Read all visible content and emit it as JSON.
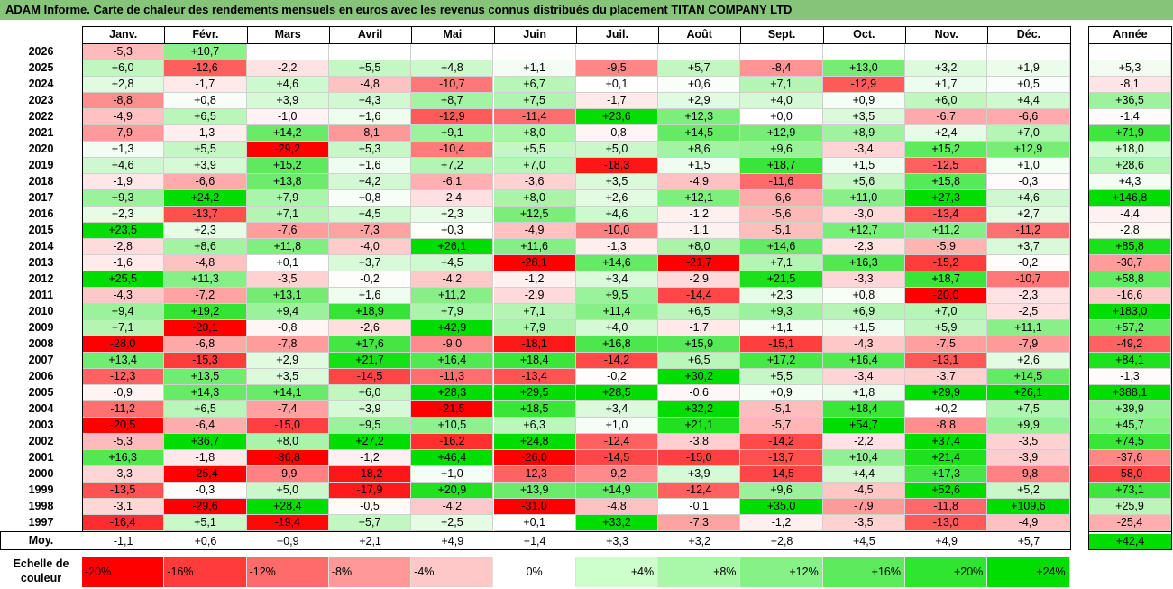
{
  "title": "ADAM Informe. Carte de chaleur des rendements mensuels en euros avec les revenus connus distribués du placement TITAN COMPANY LTD",
  "chart_data": {
    "type": "heatmap",
    "columns": [
      "Janv.",
      "Févr.",
      "Mars",
      "Avril",
      "Mai",
      "Juin",
      "Juil.",
      "Août",
      "Sept.",
      "Oct.",
      "Nov.",
      "Déc."
    ],
    "year_header": "Année",
    "rows": [
      {
        "year": "2026",
        "months": [
          -5.3,
          10.7,
          null,
          null,
          null,
          null,
          null,
          null,
          null,
          null,
          null,
          null
        ],
        "annual": null
      },
      {
        "year": "2025",
        "months": [
          6.0,
          -12.6,
          -2.2,
          5.5,
          4.8,
          1.1,
          -9.5,
          5.7,
          -8.4,
          13.0,
          3.2,
          1.9
        ],
        "annual": 5.3
      },
      {
        "year": "2024",
        "months": [
          2.8,
          -1.7,
          4.6,
          -4.8,
          -10.7,
          6.7,
          0.1,
          0.6,
          7.1,
          -12.9,
          1.7,
          0.5
        ],
        "annual": -8.1
      },
      {
        "year": "2023",
        "months": [
          -8.8,
          0.8,
          3.9,
          4.3,
          8.7,
          7.5,
          -1.7,
          2.9,
          4.0,
          0.9,
          6.0,
          4.4
        ],
        "annual": 36.5
      },
      {
        "year": "2022",
        "months": [
          -4.9,
          6.5,
          -1.0,
          1.6,
          -12.9,
          -11.4,
          23.6,
          12.3,
          0.0,
          3.5,
          -6.7,
          -6.6
        ],
        "annual": -1.4
      },
      {
        "year": "2021",
        "months": [
          -7.9,
          -1.3,
          14.2,
          -8.1,
          9.1,
          8.0,
          -0.8,
          14.5,
          12.9,
          8.9,
          2.4,
          7.0
        ],
        "annual": 71.9
      },
      {
        "year": "2020",
        "months": [
          1.3,
          5.5,
          -29.2,
          5.3,
          -10.4,
          5.5,
          5.0,
          8.6,
          9.6,
          -3.4,
          15.2,
          12.9
        ],
        "annual": 18.0
      },
      {
        "year": "2019",
        "months": [
          4.6,
          3.9,
          15.2,
          1.6,
          7.2,
          7.0,
          -18.3,
          1.5,
          18.7,
          1.5,
          -12.5,
          1.0
        ],
        "annual": 28.6
      },
      {
        "year": "2018",
        "months": [
          -1.9,
          -6.6,
          13.8,
          4.2,
          -6.1,
          -3.6,
          3.5,
          -4.9,
          -11.6,
          5.6,
          15.8,
          -0.3
        ],
        "annual": 4.3
      },
      {
        "year": "2017",
        "months": [
          9.3,
          24.2,
          7.9,
          0.8,
          -2.4,
          8.0,
          2.6,
          12.1,
          -6.6,
          11.0,
          27.3,
          4.6
        ],
        "annual": 146.8
      },
      {
        "year": "2016",
        "months": [
          2.3,
          -13.7,
          7.1,
          4.5,
          2.3,
          12.5,
          4.6,
          -1.2,
          -5.6,
          -3.0,
          -13.4,
          2.7
        ],
        "annual": -4.4
      },
      {
        "year": "2015",
        "months": [
          23.5,
          2.3,
          -7.6,
          -7.3,
          0.3,
          -4.9,
          -10.0,
          -1.1,
          -5.1,
          12.7,
          11.2,
          -11.2
        ],
        "annual": -2.8
      },
      {
        "year": "2014",
        "months": [
          -2.8,
          8.6,
          11.8,
          -4.0,
          26.1,
          11.6,
          -1.3,
          8.0,
          14.6,
          -2.3,
          -5.9,
          3.7
        ],
        "annual": 85.8
      },
      {
        "year": "2013",
        "months": [
          -1.6,
          -4.8,
          0.1,
          3.7,
          4.5,
          -28.1,
          14.6,
          -21.7,
          7.1,
          16.3,
          -15.2,
          -0.2
        ],
        "annual": -30.7
      },
      {
        "year": "2012",
        "months": [
          25.5,
          11.3,
          -3.5,
          -0.2,
          -4.2,
          -1.2,
          3.4,
          -2.9,
          21.5,
          -3.3,
          18.7,
          -10.7
        ],
        "annual": 58.8
      },
      {
        "year": "2011",
        "months": [
          -4.3,
          -7.2,
          13.1,
          1.6,
          11.2,
          -2.9,
          9.5,
          -14.4,
          2.3,
          0.8,
          -20.0,
          -2.3
        ],
        "annual": -16.6
      },
      {
        "year": "2010",
        "months": [
          9.4,
          19.2,
          9.4,
          18.9,
          7.9,
          7.1,
          11.4,
          6.5,
          9.3,
          6.9,
          7.0,
          -2.5
        ],
        "annual": 183.0
      },
      {
        "year": "2009",
        "months": [
          7.1,
          -20.1,
          -0.8,
          -2.6,
          42.9,
          7.9,
          4.0,
          -1.7,
          1.1,
          1.5,
          5.9,
          11.1
        ],
        "annual": 57.2
      },
      {
        "year": "2008",
        "months": [
          -28.0,
          -6.8,
          -7.8,
          17.6,
          -9.0,
          -18.1,
          16.8,
          15.9,
          -15.1,
          -4.3,
          -7.5,
          -7.9
        ],
        "annual": -49.2
      },
      {
        "year": "2007",
        "months": [
          13.4,
          -15.3,
          2.9,
          21.7,
          16.4,
          18.4,
          -14.2,
          6.5,
          17.2,
          16.4,
          -13.1,
          2.6
        ],
        "annual": 84.1
      },
      {
        "year": "2006",
        "months": [
          -12.3,
          13.5,
          3.5,
          -14.5,
          -11.3,
          -13.4,
          -0.2,
          30.2,
          5.5,
          -3.4,
          -3.7,
          14.5
        ],
        "annual": -1.3
      },
      {
        "year": "2005",
        "months": [
          -0.9,
          14.3,
          14.1,
          6.0,
          28.3,
          29.5,
          28.5,
          -0.6,
          0.9,
          1.8,
          29.9,
          26.1
        ],
        "annual": 388.1
      },
      {
        "year": "2004",
        "months": [
          -11.2,
          6.5,
          -7.4,
          3.9,
          -21.5,
          18.5,
          3.4,
          32.2,
          -5.1,
          18.4,
          0.2,
          7.5
        ],
        "annual": 39.9
      },
      {
        "year": "2003",
        "months": [
          -20.5,
          -6.4,
          -15.0,
          9.5,
          10.5,
          6.3,
          1.0,
          21.1,
          -5.7,
          54.7,
          -8.8,
          9.9
        ],
        "annual": 45.7
      },
      {
        "year": "2002",
        "months": [
          -5.3,
          36.7,
          8.0,
          27.2,
          -16.2,
          24.8,
          -12.4,
          -3.8,
          -14.2,
          -2.2,
          37.4,
          -3.5
        ],
        "annual": 74.5
      },
      {
        "year": "2001",
        "months": [
          16.3,
          -1.8,
          -36.8,
          -1.2,
          46.4,
          -26.0,
          -14.5,
          -15.0,
          -13.7,
          10.4,
          21.4,
          -3.9
        ],
        "annual": -37.6
      },
      {
        "year": "2000",
        "months": [
          -3.3,
          -25.4,
          -9.9,
          -18.2,
          1.0,
          -12.3,
          -9.2,
          3.9,
          -14.5,
          4.4,
          17.3,
          -9.8
        ],
        "annual": -58.0
      },
      {
        "year": "1999",
        "months": [
          -13.5,
          -0.3,
          5.0,
          -17.9,
          20.9,
          13.9,
          14.9,
          -12.4,
          9.6,
          -4.5,
          52.6,
          5.2
        ],
        "annual": 73.1
      },
      {
        "year": "1998",
        "months": [
          -3.1,
          -29.6,
          28.4,
          -0.5,
          -4.2,
          -31.0,
          -4.8,
          -0.1,
          35.0,
          -7.9,
          -11.8,
          109.6
        ],
        "annual": 25.9
      },
      {
        "year": "1997",
        "months": [
          -16.4,
          5.1,
          -19.4,
          5.7,
          2.5,
          0.1,
          33.2,
          -7.3,
          -1.2,
          -3.5,
          -13.0,
          -4.9
        ],
        "annual": -25.4
      }
    ],
    "average": {
      "label": "Moy.",
      "months": [
        -1.1,
        0.6,
        0.9,
        2.1,
        4.9,
        1.4,
        3.3,
        3.2,
        2.8,
        4.5,
        4.9,
        5.7
      ],
      "annual": 42.4
    },
    "legend": {
      "label_line1": "Echelle de",
      "label_line2": "couleur",
      "stops": [
        "-20%",
        "-16%",
        "-12%",
        "-8%",
        "-4%",
        "0%",
        "+4%",
        "+8%",
        "+12%",
        "+16%",
        "+20%",
        "+24%"
      ],
      "colors": [
        "#ff0000",
        "#ff3b3b",
        "#ff6a6a",
        "#ff9999",
        "#ffc8c8",
        "#ffffff",
        "#ccffcc",
        "#a9f7a9",
        "#86f186",
        "#5ceb5c",
        "#30e530",
        "#00dd00"
      ]
    }
  }
}
